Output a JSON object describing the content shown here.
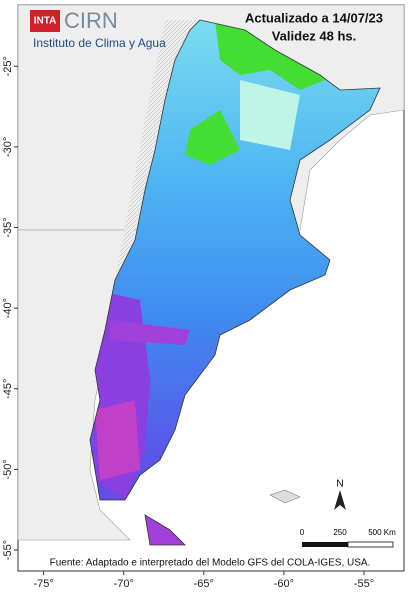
{
  "header": {
    "logo_inta": "INTA",
    "logo_cirn": "CIRN",
    "institute": "Instituto de Clima y Agua",
    "updated": "Actualizado a 14/07/23",
    "validity": "Validez 48 hs."
  },
  "map_data": {
    "xlim": [
      -76.6,
      -52.5
    ],
    "ylim": [
      -21.2,
      -56.3
    ],
    "lonticks": [
      {
        "value": -75,
        "label": "-75°"
      },
      {
        "value": -70,
        "label": "-70°"
      },
      {
        "value": -65,
        "label": "-65°"
      },
      {
        "value": -60,
        "label": "-60°"
      },
      {
        "value": -55,
        "label": "-55°"
      }
    ],
    "latticks": [
      {
        "value": -25,
        "label": "-25°"
      },
      {
        "value": -30,
        "label": "-30°"
      },
      {
        "value": -35,
        "label": "-35°"
      },
      {
        "value": -40,
        "label": "-40°"
      },
      {
        "value": -45,
        "label": "-45°"
      },
      {
        "value": -50,
        "label": "-50°"
      },
      {
        "value": -55,
        "label": "-55°"
      }
    ],
    "north": "N",
    "scale_labels": [
      "0",
      "250",
      "500 Km"
    ]
  },
  "footer": "Fuente: Adaptado e interpretado del Modelo GFS del COLA-IGES, USA."
}
